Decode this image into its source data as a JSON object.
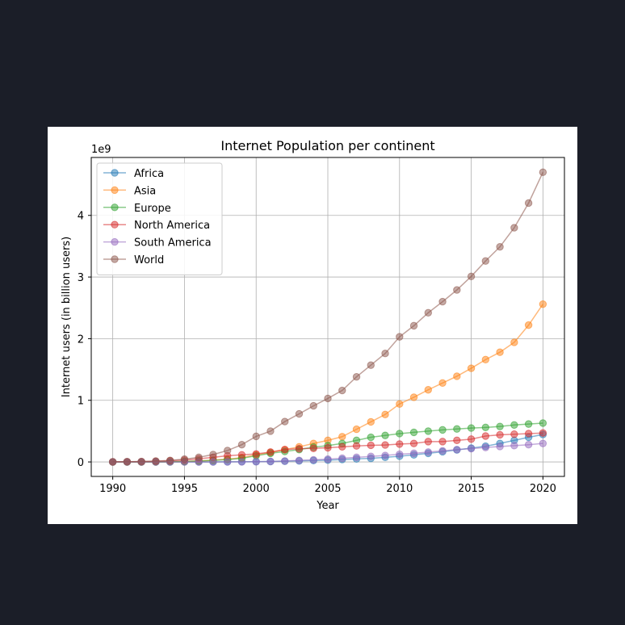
{
  "chart_data": {
    "type": "line",
    "title": "Internet Population per continent",
    "xlabel": "Year",
    "ylabel": "Internet users (in billion users)",
    "y_offset_text": "1e9",
    "x": [
      1990,
      1991,
      1992,
      1993,
      1994,
      1995,
      1996,
      1997,
      1998,
      1999,
      2000,
      2001,
      2002,
      2003,
      2004,
      2005,
      2006,
      2007,
      2008,
      2009,
      2010,
      2011,
      2012,
      2013,
      2014,
      2015,
      2016,
      2017,
      2018,
      2019,
      2020
    ],
    "xlim": [
      1988.5,
      2021.5
    ],
    "ylim": [
      -0.235,
      4.94
    ],
    "x_ticks": [
      1990,
      1995,
      2000,
      2005,
      2010,
      2015,
      2020
    ],
    "x_tick_labels": [
      "1990",
      "1995",
      "2000",
      "2005",
      "2010",
      "2015",
      "2020"
    ],
    "y_ticks": [
      0,
      1,
      2,
      3,
      4
    ],
    "y_tick_labels": [
      "0",
      "1",
      "2",
      "3",
      "4"
    ],
    "grid": true,
    "legend_position": "top-left",
    "series": [
      {
        "name": "Africa",
        "color": "#1f77b4",
        "values": [
          0,
          0,
          0,
          0,
          0,
          0.001,
          0.001,
          0.001,
          0.002,
          0.003,
          0.004,
          0.007,
          0.012,
          0.017,
          0.023,
          0.029,
          0.039,
          0.05,
          0.058,
          0.075,
          0.093,
          0.115,
          0.14,
          0.165,
          0.195,
          0.225,
          0.255,
          0.3,
          0.35,
          0.4,
          0.445
        ]
      },
      {
        "name": "Asia",
        "color": "#ff7f0e",
        "values": [
          0,
          0,
          0,
          0.001,
          0.003,
          0.007,
          0.015,
          0.028,
          0.045,
          0.07,
          0.115,
          0.155,
          0.2,
          0.245,
          0.3,
          0.35,
          0.41,
          0.53,
          0.65,
          0.77,
          0.94,
          1.05,
          1.17,
          1.28,
          1.39,
          1.52,
          1.66,
          1.78,
          1.94,
          2.22,
          2.56
        ]
      },
      {
        "name": "Europe",
        "color": "#2ca02c",
        "values": [
          0,
          0,
          0,
          0.001,
          0.003,
          0.008,
          0.016,
          0.025,
          0.038,
          0.058,
          0.1,
          0.14,
          0.17,
          0.2,
          0.24,
          0.265,
          0.3,
          0.35,
          0.4,
          0.43,
          0.46,
          0.48,
          0.5,
          0.52,
          0.535,
          0.55,
          0.56,
          0.575,
          0.6,
          0.615,
          0.63
        ]
      },
      {
        "name": "North America",
        "color": "#d62728",
        "values": [
          0.002,
          0.003,
          0.005,
          0.01,
          0.02,
          0.03,
          0.05,
          0.075,
          0.1,
          0.115,
          0.13,
          0.16,
          0.2,
          0.215,
          0.22,
          0.23,
          0.245,
          0.26,
          0.27,
          0.275,
          0.29,
          0.3,
          0.33,
          0.33,
          0.35,
          0.37,
          0.42,
          0.44,
          0.45,
          0.46,
          0.47
        ]
      },
      {
        "name": "South America",
        "color": "#9467bd",
        "values": [
          0,
          0,
          0,
          0,
          0,
          0,
          0,
          0,
          0.001,
          0.002,
          0.004,
          0.008,
          0.015,
          0.025,
          0.035,
          0.045,
          0.06,
          0.075,
          0.09,
          0.105,
          0.125,
          0.14,
          0.16,
          0.18,
          0.2,
          0.215,
          0.235,
          0.25,
          0.265,
          0.28,
          0.3
        ]
      },
      {
        "name": "World",
        "color": "#8c564b",
        "values": [
          0.002,
          0.004,
          0.007,
          0.014,
          0.025,
          0.045,
          0.075,
          0.12,
          0.185,
          0.28,
          0.415,
          0.5,
          0.655,
          0.78,
          0.91,
          1.03,
          1.16,
          1.38,
          1.57,
          1.76,
          2.03,
          2.21,
          2.42,
          2.6,
          2.79,
          3.01,
          3.26,
          3.49,
          3.8,
          4.2,
          4.7
        ]
      }
    ]
  }
}
